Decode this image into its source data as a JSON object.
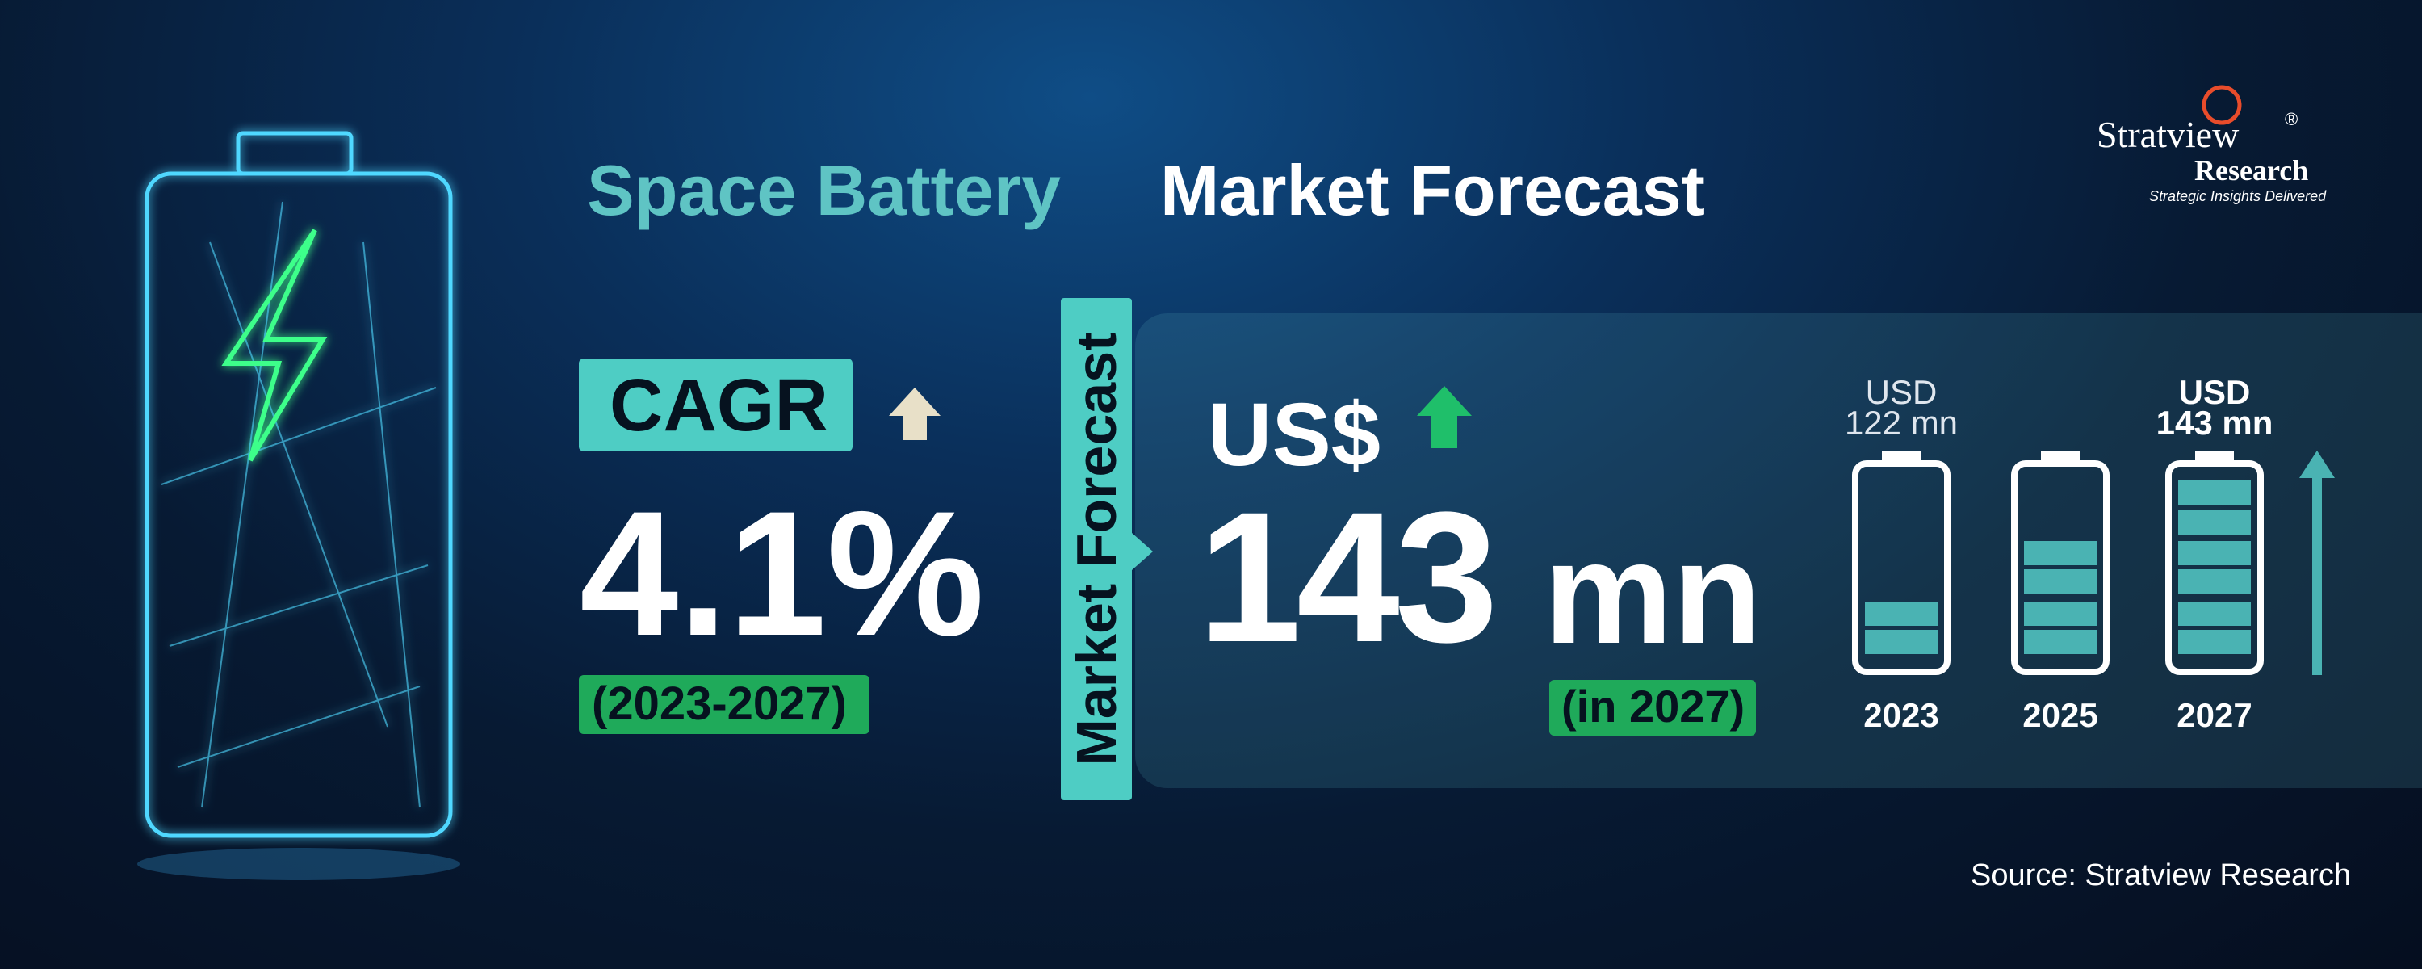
{
  "title": {
    "part1": "Space Battery",
    "part2": "Market Forecast"
  },
  "logo": {
    "name": "Stratview",
    "registered": "®",
    "sub": "Research",
    "tagline": "Strategic Insights Delivered"
  },
  "cagr": {
    "label": "CAGR",
    "value": "4.1%",
    "period": "(2023-2027)"
  },
  "side_label": "Market Forecast",
  "forecast": {
    "currency": "US$",
    "value": "143",
    "unit": "mn",
    "note": "(in 2027)"
  },
  "batteries": [
    {
      "top": "USD",
      "bottom": "122 mn",
      "year": "2023"
    },
    {
      "year": "2025"
    },
    {
      "top": "USD",
      "bottom": "143 mn",
      "year": "2027"
    }
  ],
  "source": "Source: Stratview Research"
}
